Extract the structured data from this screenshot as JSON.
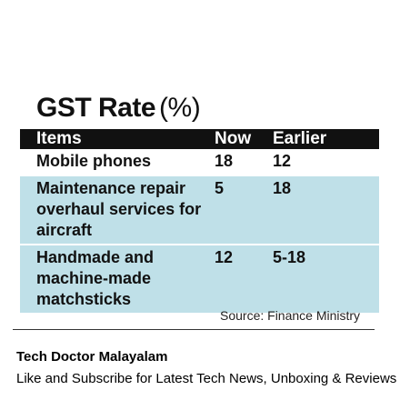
{
  "title": {
    "main": "GST Rate",
    "unit": "(%)"
  },
  "table": {
    "headers": [
      "Items",
      "Now",
      "Earlier"
    ],
    "rows": [
      {
        "item": "Mobile phones",
        "now": "18",
        "earlier": "12",
        "shaded": false
      },
      {
        "item": "Maintenance repair overhaul services for aircraft",
        "now": "5",
        "earlier": "18",
        "shaded": true
      },
      {
        "item": "Handmade and machine-made matchsticks",
        "now": "12",
        "earlier": "5-18",
        "shaded": true
      }
    ]
  },
  "source": "Source: Finance Ministry",
  "footer": {
    "brand": "Tech Doctor Malayalam",
    "tagline": "Like and Subscribe for Latest Tech News, Unboxing & Reviews"
  },
  "colors": {
    "header_bg": "#111111",
    "row_shade": "#bfe0e8"
  }
}
